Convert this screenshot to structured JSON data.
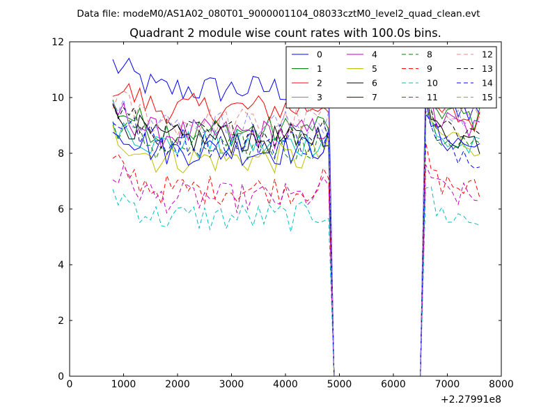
{
  "chart_data": {
    "type": "line",
    "suptitle": "Data file: modeM0/AS1A02_080T01_9000001104_08033cztM0_level2_quad_clean.evt",
    "title": "Quadrant 2 module wise count rates with 100.0s bins.",
    "xlabel": "",
    "ylabel": "",
    "x_offset_label": "+2.27991e8",
    "xlim": [
      0,
      8000
    ],
    "ylim": [
      0,
      12
    ],
    "x_ticks": [
      0,
      1000,
      2000,
      3000,
      4000,
      5000,
      6000,
      7000,
      8000
    ],
    "y_ticks": [
      0,
      2,
      4,
      6,
      8,
      10,
      12
    ],
    "legend_location": "top-right",
    "legend_columns": 4,
    "bin_width_s": 100,
    "time_axis": {
      "start": 800,
      "step": 100,
      "data_end": 4800,
      "gap_start": 4900,
      "gap_end": 6500,
      "resume": 6600,
      "end": 7600
    },
    "series": [
      {
        "name": "0",
        "color": "#0000ff",
        "dash": "solid",
        "level": 10.3,
        "after": 10.0
      },
      {
        "name": "1",
        "color": "#008000",
        "dash": "solid",
        "level": 8.8,
        "after": 9.7
      },
      {
        "name": "2",
        "color": "#ff0000",
        "dash": "solid",
        "level": 9.6,
        "after": 9.6
      },
      {
        "name": "3",
        "color": "#00bfbf",
        "dash": "solid",
        "level": 8.3,
        "after": 8.6
      },
      {
        "name": "4",
        "color": "#bf00bf",
        "dash": "solid",
        "level": 8.7,
        "after": 9.3
      },
      {
        "name": "5",
        "color": "#bfbf00",
        "dash": "solid",
        "level": 7.8,
        "after": 8.8
      },
      {
        "name": "6",
        "color": "#000000",
        "dash": "solid",
        "level": 8.5,
        "after": 8.9
      },
      {
        "name": "7",
        "color": "#0000ff",
        "dash": "solid",
        "level": 8.1,
        "after": 8.7
      },
      {
        "name": "8",
        "color": "#008000",
        "dash": "dashed",
        "level": 8.2,
        "after": 8.7
      },
      {
        "name": "9",
        "color": "#ff0000",
        "dash": "dashed",
        "level": 6.7,
        "after": 7.1
      },
      {
        "name": "10",
        "color": "#00bfbf",
        "dash": "dashed",
        "level": 5.7,
        "after": 6.0
      },
      {
        "name": "11",
        "color": "#bf00bf",
        "dash": "dashed",
        "level": 6.4,
        "after": 6.8
      },
      {
        "name": "12",
        "color": "#e88a8a",
        "dash": "dashed",
        "level": 9.1,
        "after": 9.9
      },
      {
        "name": "13",
        "color": "#000000",
        "dash": "dashed",
        "level": 8.7,
        "after": 9.2
      },
      {
        "name": "14",
        "color": "#0000ff",
        "dash": "dashed",
        "level": 8.4,
        "after": 8.4
      },
      {
        "name": "15",
        "color": "#8888ff",
        "dash": "dashed",
        "level": 9.0,
        "after": 9.6
      }
    ]
  }
}
